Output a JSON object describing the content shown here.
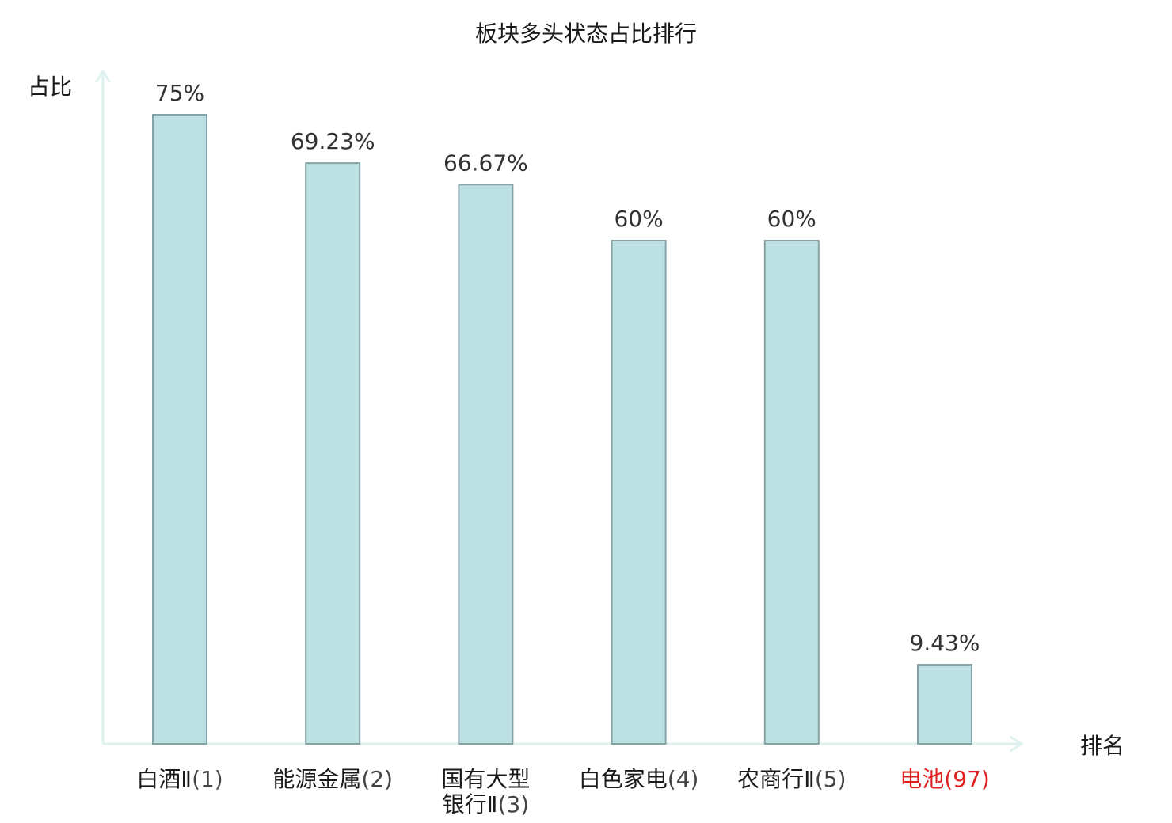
{
  "chart_data": {
    "type": "bar",
    "title": "板块多头状态占比排行",
    "xlabel": "排名",
    "ylabel": "占比",
    "ylim": [
      0,
      80
    ],
    "grid": false,
    "categories": [
      {
        "name": [
          "白酒Ⅱ"
        ],
        "rank": "(1)",
        "highlight": false
      },
      {
        "name": [
          "能源金属"
        ],
        "rank": "(2)",
        "highlight": false
      },
      {
        "name": [
          "国有大型",
          "银行Ⅱ"
        ],
        "rank": "(3)",
        "highlight": false
      },
      {
        "name": [
          "白色家电"
        ],
        "rank": "(4)",
        "highlight": false
      },
      {
        "name": [
          "农商行Ⅱ"
        ],
        "rank": "(5)",
        "highlight": false
      },
      {
        "name": [
          "电池"
        ],
        "rank": "(97)",
        "highlight": true
      }
    ],
    "values": [
      75,
      69.23,
      66.67,
      60,
      60,
      9.43
    ],
    "value_labels": [
      "75%",
      "69.23%",
      "66.67%",
      "60%",
      "60%",
      "9.43%"
    ]
  },
  "colors": {
    "bar_fill": "#bde0e3",
    "bar_stroke": "#85a3a6",
    "axis": "#dff1ee",
    "highlight": "#e02020",
    "text": "#1a1a1a",
    "rank_text": "#444444"
  }
}
